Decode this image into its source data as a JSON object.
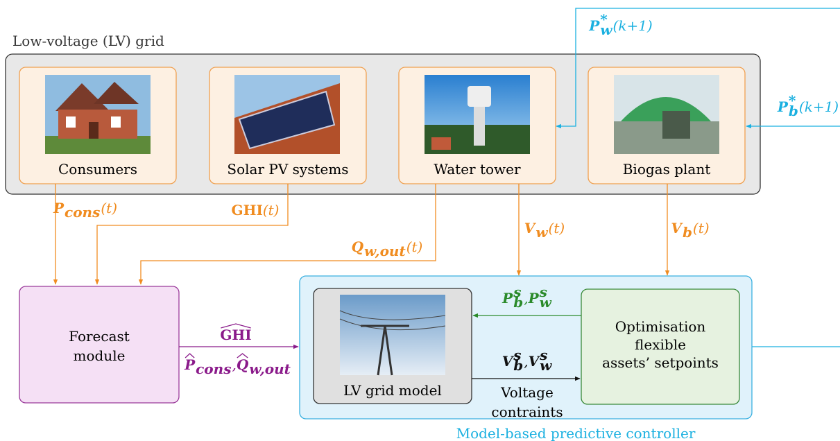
{
  "title": "Low-voltage (LV) grid",
  "assets": [
    {
      "label": "Consumers"
    },
    {
      "label": "Solar PV systems"
    },
    {
      "label": "Water tower"
    },
    {
      "label": "Biogas plant"
    }
  ],
  "signals": [
    {
      "parts": [
        {
          "text": "P",
          "sub": "cons"
        },
        {
          "text": "(t)"
        }
      ]
    },
    {
      "parts": [
        {
          "text": "GHI",
          "bold": true
        },
        {
          "text": "(t)"
        }
      ]
    },
    {
      "parts": [
        {
          "text": "Q",
          "sub": "w,out"
        },
        {
          "text": "(t)"
        }
      ]
    },
    {
      "parts": [
        {
          "text": "V",
          "sub": "w"
        },
        {
          "text": "(t)"
        }
      ]
    },
    {
      "parts": [
        {
          "text": "V",
          "sub": "b"
        },
        {
          "text": "(t)"
        }
      ]
    },
    {
      "parts": [
        {
          "text": "P",
          "sup": "*",
          "sub": "w"
        },
        {
          "text": "(k+1)"
        }
      ]
    },
    {
      "parts": [
        {
          "text": "P",
          "sup": "*",
          "sub": "b"
        },
        {
          "text": "(k+1)"
        }
      ]
    },
    {
      "parts": [
        {
          "text": "P",
          "sup": "s",
          "sub": "b"
        },
        {
          "text": ", "
        },
        {
          "text": "P",
          "sup": "s",
          "sub": "w"
        }
      ]
    },
    {
      "parts": [
        {
          "text": "V",
          "sup": "s",
          "sub": "b"
        },
        {
          "text": ", "
        },
        {
          "text": "V",
          "sup": "s",
          "sub": "w"
        }
      ]
    },
    {
      "parts": [
        {
          "text": "GHI",
          "bold": true,
          "hat": true
        }
      ]
    },
    {
      "parts": [
        {
          "text": "P",
          "sub": "cons",
          "hat": true
        },
        {
          "text": ", "
        },
        {
          "text": "Q",
          "sub": "w,out",
          "hat": true
        }
      ]
    }
  ],
  "forecast": {
    "lines": [
      "Forecast",
      "module"
    ]
  },
  "controller": {
    "label": "Model-based predictive controller",
    "grid_model": "LV grid model",
    "optimiser": {
      "lines": [
        "Optimisation",
        "flexible",
        "assets’ setpoints"
      ]
    },
    "constraints": {
      "lines": [
        "Voltage",
        "contraints"
      ]
    }
  }
}
